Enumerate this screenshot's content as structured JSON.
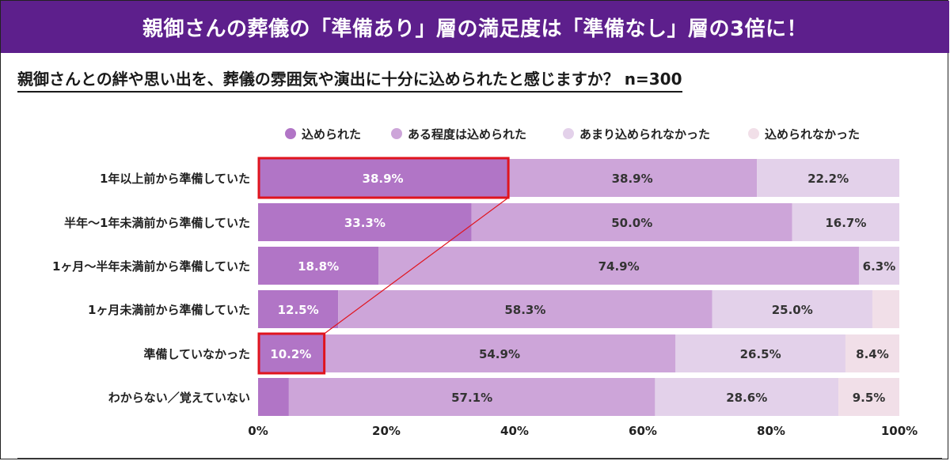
{
  "banner": {
    "title": "親御さんの葬儀の「準備あり」層の満足度は「準備なし」層の3倍に！"
  },
  "question": {
    "text": "親御さんとの絆や思い出を、葬儀の雰囲気や演出に十分に込められたと感じますか？ n=300"
  },
  "colors": {
    "banner": "#5d1f8c",
    "series": [
      "#b175c6",
      "#cda5d9",
      "#e3d1ea",
      "#f1dfe8"
    ],
    "highlight": "#e0141e"
  },
  "chart_data": {
    "type": "bar",
    "orientation": "horizontal",
    "stacked": true,
    "legend_position": "top",
    "categories": [
      "1年以上前から準備していた",
      "半年〜1年未満前から準備していた",
      "1ヶ月〜半年未満前から準備していた",
      "1ヶ月未満前から準備していた",
      "準備していなかった",
      "わからない／覚えていない"
    ],
    "series": [
      {
        "name": "込められた",
        "values": [
          38.9,
          33.3,
          18.8,
          12.5,
          10.2,
          4.8
        ]
      },
      {
        "name": "ある程度は込められた",
        "values": [
          38.9,
          50.0,
          74.9,
          58.3,
          54.9,
          57.1
        ]
      },
      {
        "name": "あまり込められなかった",
        "values": [
          22.2,
          16.7,
          6.3,
          25.0,
          26.5,
          28.6
        ]
      },
      {
        "name": "込められなかった",
        "values": [
          0,
          0,
          0,
          4.2,
          8.4,
          9.5
        ]
      }
    ],
    "data_labels": [
      [
        "38.9%",
        "38.9%",
        "22.2%",
        ""
      ],
      [
        "33.3%",
        "50.0%",
        "16.7%",
        ""
      ],
      [
        "18.8%",
        "74.9%",
        "6.3%",
        ""
      ],
      [
        "12.5%",
        "58.3%",
        "25.0%",
        ""
      ],
      [
        "10.2%",
        "54.9%",
        "26.5%",
        "8.4%"
      ],
      [
        "",
        "57.1%",
        "28.6%",
        "9.5%"
      ]
    ],
    "xlim": [
      0,
      100
    ],
    "xticks": [
      "0%",
      "20%",
      "40%",
      "60%",
      "80%",
      "100%"
    ],
    "highlights": [
      {
        "category_index": 0,
        "series_index": 0
      },
      {
        "category_index": 4,
        "series_index": 0
      }
    ]
  }
}
